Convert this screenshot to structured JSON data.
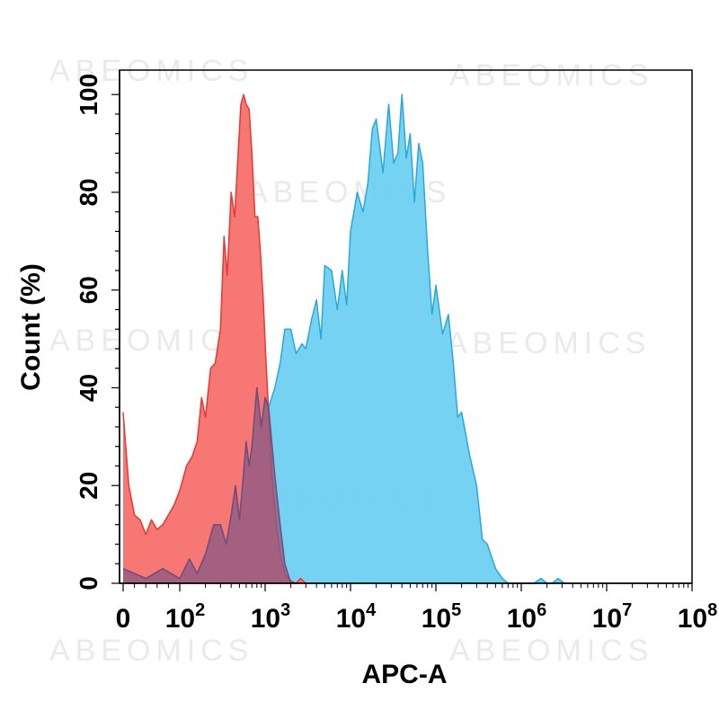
{
  "watermark": "ABEOMICS",
  "chart_data": {
    "type": "area",
    "title": "",
    "xlabel": "APC-A",
    "ylabel": "Count  (%)",
    "xscale": "biexponential",
    "xlim": [
      0,
      100000000
    ],
    "ylim": [
      0,
      105
    ],
    "grid": false,
    "legend": "none",
    "yticks": [
      0,
      20,
      40,
      60,
      80,
      100
    ],
    "xticks": [
      {
        "base": "0",
        "exp": "",
        "value": 0
      },
      {
        "base": "10",
        "exp": "2",
        "value": 100
      },
      {
        "base": "10",
        "exp": "3",
        "value": 1000
      },
      {
        "base": "10",
        "exp": "4",
        "value": 10000
      },
      {
        "base": "10",
        "exp": "5",
        "value": 100000
      },
      {
        "base": "10",
        "exp": "6",
        "value": 1000000
      },
      {
        "base": "10",
        "exp": "7",
        "value": 10000000
      },
      {
        "base": "10",
        "exp": "8",
        "value": 100000000
      }
    ],
    "series": [
      {
        "color": "#e53935",
        "fill": "#f5706c",
        "x": [
          0,
          10,
          20,
          30,
          40,
          50,
          60,
          70,
          80,
          90,
          100,
          120,
          140,
          160,
          180,
          200,
          230,
          260,
          300,
          330,
          360,
          400,
          440,
          480,
          520,
          560,
          600,
          650,
          700,
          760,
          820,
          880,
          950,
          1020,
          1100,
          1200,
          1350,
          1500,
          1700,
          2000,
          2300,
          2600,
          3000
        ],
        "y": [
          35,
          20,
          14,
          13,
          10,
          13,
          11,
          12,
          14,
          16,
          19,
          24,
          26,
          29,
          38,
          34,
          44,
          45,
          52,
          71,
          63,
          80,
          75,
          87,
          98,
          100,
          98,
          97,
          88,
          75,
          75,
          68,
          58,
          46,
          35,
          22,
          12,
          6,
          2,
          0.5,
          0,
          1,
          0
        ]
      },
      {
        "color": "#29a8d8",
        "fill": "#6fd0f2",
        "x": [
          0,
          20,
          40,
          70,
          100,
          130,
          160,
          200,
          250,
          300,
          350,
          400,
          450,
          500,
          550,
          600,
          650,
          700,
          800,
          900,
          1000,
          1100,
          1300,
          1500,
          1700,
          2000,
          2300,
          2700,
          3000,
          3500,
          4000,
          4500,
          5000,
          6000,
          7000,
          8000,
          9000,
          10000,
          12000,
          14000,
          16000,
          18000,
          20000,
          24000,
          28000,
          32000,
          36000,
          40000,
          45000,
          50000,
          56000,
          63000,
          70000,
          80000,
          90000,
          100000,
          120000,
          140000,
          160000,
          180000,
          200000,
          250000,
          300000,
          350000,
          400000,
          500000,
          600000,
          700000,
          800000,
          1000000,
          1200000,
          1400000,
          1700000,
          2000000,
          2300000,
          2700000,
          3200000
        ],
        "y": [
          3,
          2,
          1,
          3,
          1,
          5,
          2,
          6,
          12,
          12,
          8,
          14,
          20,
          13,
          21,
          29,
          24,
          28,
          40,
          32,
          38,
          36,
          40,
          45,
          52,
          52,
          47,
          49,
          48,
          54,
          58,
          50,
          65,
          64,
          56,
          64,
          57,
          72,
          80,
          76,
          82,
          93,
          95,
          84,
          98,
          86,
          88,
          100,
          87,
          92,
          78,
          90,
          86,
          68,
          55,
          61,
          51,
          55,
          45,
          34,
          35,
          26,
          20,
          9,
          8,
          3,
          1,
          0,
          0,
          0,
          0,
          0,
          1,
          0,
          0,
          1,
          0
        ]
      },
      {
        "color": "#6d4d7a",
        "fill": "#8a5a84",
        "x": [
          0,
          20,
          40,
          70,
          100,
          130,
          160,
          200,
          250,
          300,
          350,
          400,
          450,
          500,
          550,
          600,
          650,
          700,
          800,
          900,
          1000,
          1100,
          1300,
          1500,
          1700,
          2000
        ],
        "y": [
          3,
          2,
          1,
          3,
          1,
          5,
          2,
          6,
          12,
          12,
          8,
          14,
          20,
          13,
          21,
          29,
          24,
          28,
          40,
          32,
          38,
          36,
          22,
          12,
          4,
          0
        ]
      }
    ]
  }
}
